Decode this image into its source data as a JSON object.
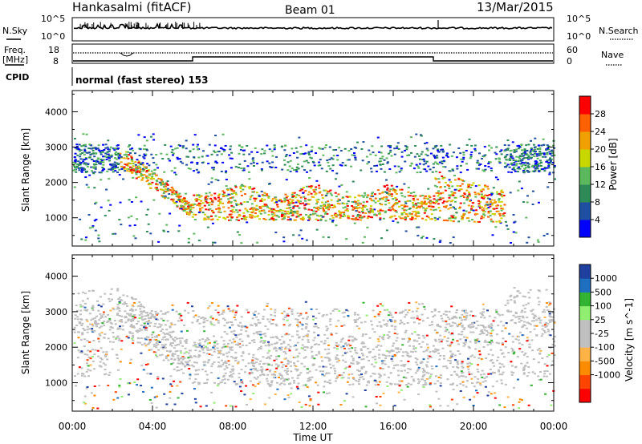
{
  "header": {
    "station": "Hankasalmi (fitACF)",
    "beam": "Beam 01",
    "date": "13/Mar/2015"
  },
  "noise_panel": {
    "left_label": "N.Sky",
    "right_label": "N.Search",
    "left_ticks": [
      "10^5",
      "10^0"
    ],
    "right_ticks": [
      "10^5",
      "10^0"
    ]
  },
  "freq_panel": {
    "left_label_1": "Freq.",
    "left_label_2": "[MHz]",
    "left_ticks": [
      "18",
      "8"
    ],
    "right_label": "Nave",
    "right_ticks": [
      "60",
      "0"
    ]
  },
  "cpid_panel": {
    "label": "CPID",
    "text": "normal (fast stereo) 153"
  },
  "colors": {
    "power": [
      "#0000ff",
      "#1f4fa0",
      "#2e8b57",
      "#5cb85c",
      "#c8d700",
      "#f0a000",
      "#ff6000",
      "#ff0000"
    ],
    "velocity": [
      "#ff0000",
      "#ff4500",
      "#ff8c00",
      "#ffb347",
      "#c0c0c0",
      "#c0c0c0",
      "#90ee70",
      "#32b432",
      "#1e6fbf",
      "#2040a0"
    ],
    "ground_scatter": "#bebebe"
  },
  "chart_data": [
    {
      "type": "heatmap",
      "title": "Power",
      "xlabel": "Time UT",
      "ylabel": "Slant Range [km]",
      "x_ticks": [
        "00:00",
        "04:00",
        "08:00",
        "12:00",
        "16:00",
        "20:00",
        "00:00"
      ],
      "y_ticks": [
        "1000",
        "2000",
        "3000",
        "4000"
      ],
      "ylim": [
        200,
        4600
      ],
      "colorbar": {
        "label": "Power [dB]",
        "ticks": [
          "4",
          "8",
          "12",
          "16",
          "20",
          "24",
          "28"
        ]
      }
    },
    {
      "type": "heatmap",
      "title": "Velocity",
      "xlabel": "Time UT",
      "ylabel": "Slant Range [km]",
      "x_ticks": [
        "00:00",
        "04:00",
        "08:00",
        "12:00",
        "16:00",
        "20:00",
        "00:00"
      ],
      "y_ticks": [
        "1000",
        "2000",
        "3000",
        "4000"
      ],
      "ylim": [
        200,
        4600
      ],
      "colorbar": {
        "label": "Velocity [m s^-1]",
        "ticks": [
          "1000",
          "500",
          "100",
          "25",
          "-25",
          "-100",
          "-500",
          "-1000"
        ]
      }
    }
  ]
}
